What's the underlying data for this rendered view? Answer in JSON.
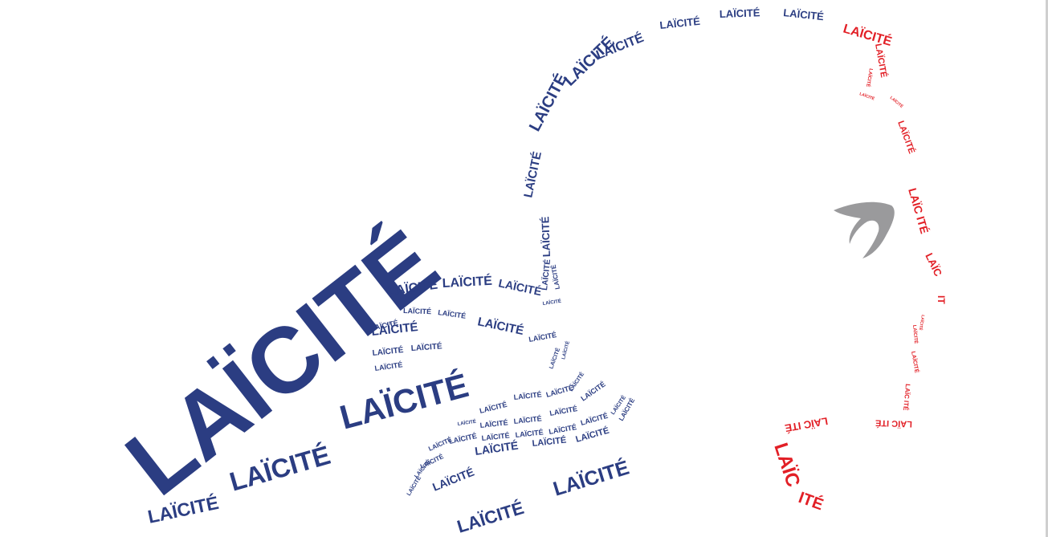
{
  "artwork": {
    "word": "LAÏCITÉ",
    "split_a": "LAÏC ITÉ",
    "split_b": "LAÏC",
    "split_c": "ITÉ",
    "split_d": "IT",
    "colors": {
      "blue": "#2b3d82",
      "red": "#e21f26",
      "grey": "#9a9a9c",
      "background": "#ffffff"
    },
    "nose_shape": "grey-swoosh"
  }
}
